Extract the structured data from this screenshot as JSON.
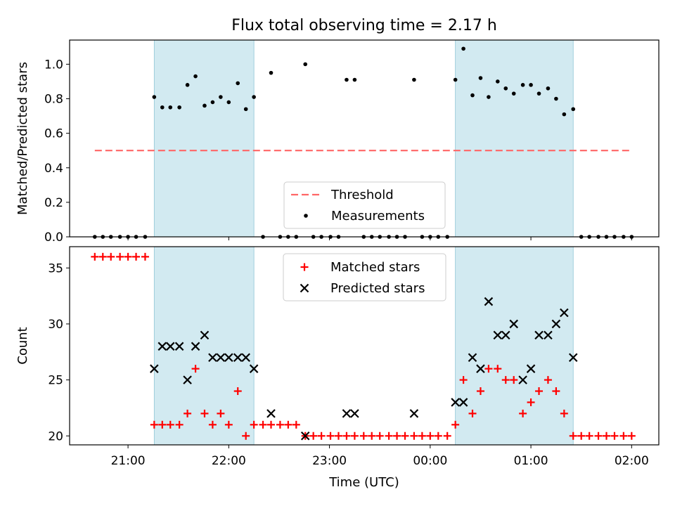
{
  "chart_data": {
    "title": "Flux total observing time = 2.17 h",
    "x_tick_labels": [
      "21:00",
      "22:00",
      "23:00",
      "00:00",
      "01:00",
      "02:00"
    ],
    "x_tick_hours": [
      21,
      22,
      23,
      24,
      25,
      26
    ],
    "xlabel": "Time (UTC)",
    "xlim_hours": [
      20.42,
      26.27
    ],
    "colors": {
      "band": "#add8e6",
      "threshold": "#ff6666",
      "matched": "#ff0000",
      "predicted": "#000000",
      "measurement": "#000000"
    },
    "bands_hours": [
      [
        21.26,
        22.25
      ],
      [
        24.25,
        25.42
      ]
    ],
    "charts": [
      {
        "type": "scatter",
        "ylabel": "Matched/Predicted stars",
        "ylim": [
          0,
          1.14
        ],
        "y_ticks": [
          "0.0",
          "0.2",
          "0.4",
          "0.6",
          "0.8",
          "1.0"
        ],
        "y_tick_values": [
          0.0,
          0.2,
          0.4,
          0.6,
          0.8,
          1.0
        ],
        "threshold": {
          "name": "Threshold",
          "value": 0.5,
          "x_range_hours": [
            20.67,
            25.98
          ]
        },
        "series": [
          {
            "name": "Measurements",
            "points": [
              [
                20.67,
                0
              ],
              [
                20.75,
                0
              ],
              [
                20.83,
                0
              ],
              [
                20.92,
                0
              ],
              [
                21.0,
                0
              ],
              [
                21.08,
                0
              ],
              [
                21.17,
                0
              ],
              [
                21.26,
                0.81
              ],
              [
                21.34,
                0.75
              ],
              [
                21.42,
                0.75
              ],
              [
                21.51,
                0.75
              ],
              [
                21.59,
                0.88
              ],
              [
                21.67,
                0.93
              ],
              [
                21.76,
                0.76
              ],
              [
                21.84,
                0.78
              ],
              [
                21.92,
                0.81
              ],
              [
                22.0,
                0.78
              ],
              [
                22.09,
                0.89
              ],
              [
                22.17,
                0.74
              ],
              [
                22.25,
                0.81
              ],
              [
                22.34,
                0
              ],
              [
                22.42,
                0.95
              ],
              [
                22.51,
                0
              ],
              [
                22.59,
                0
              ],
              [
                22.67,
                0
              ],
              [
                22.76,
                1.0
              ],
              [
                22.84,
                0
              ],
              [
                22.92,
                0
              ],
              [
                23.01,
                0
              ],
              [
                23.09,
                0
              ],
              [
                23.17,
                0.91
              ],
              [
                23.25,
                0.91
              ],
              [
                23.34,
                0
              ],
              [
                23.42,
                0
              ],
              [
                23.5,
                0
              ],
              [
                23.59,
                0
              ],
              [
                23.67,
                0
              ],
              [
                23.75,
                0
              ],
              [
                23.84,
                0.91
              ],
              [
                23.92,
                0
              ],
              [
                24.0,
                0
              ],
              [
                24.08,
                0
              ],
              [
                24.17,
                0
              ],
              [
                24.25,
                0.91
              ],
              [
                24.33,
                1.09
              ],
              [
                24.42,
                0.82
              ],
              [
                24.5,
                0.92
              ],
              [
                24.58,
                0.81
              ],
              [
                24.67,
                0.9
              ],
              [
                24.75,
                0.86
              ],
              [
                24.83,
                0.83
              ],
              [
                24.92,
                0.88
              ],
              [
                25.0,
                0.88
              ],
              [
                25.08,
                0.83
              ],
              [
                25.17,
                0.86
              ],
              [
                25.25,
                0.8
              ],
              [
                25.33,
                0.71
              ],
              [
                25.42,
                0.74
              ],
              [
                25.5,
                0
              ],
              [
                25.58,
                0
              ],
              [
                25.67,
                0
              ],
              [
                25.75,
                0
              ],
              [
                25.83,
                0
              ],
              [
                25.92,
                0
              ],
              [
                26.0,
                0
              ]
            ]
          }
        ],
        "legend": {
          "position": "lower-center",
          "entries": [
            "Threshold",
            "Measurements"
          ]
        }
      },
      {
        "type": "scatter",
        "ylabel": "Count",
        "ylim": [
          19.2,
          36.9
        ],
        "y_ticks": [
          "20",
          "25",
          "30",
          "35"
        ],
        "y_tick_values": [
          20,
          25,
          30,
          35
        ],
        "series": [
          {
            "name": "Matched stars",
            "marker": "+",
            "points": [
              [
                20.67,
                36
              ],
              [
                20.75,
                36
              ],
              [
                20.83,
                36
              ],
              [
                20.92,
                36
              ],
              [
                21.0,
                36
              ],
              [
                21.08,
                36
              ],
              [
                21.17,
                36
              ],
              [
                21.26,
                21
              ],
              [
                21.34,
                21
              ],
              [
                21.42,
                21
              ],
              [
                21.51,
                21
              ],
              [
                21.59,
                22
              ],
              [
                21.67,
                26
              ],
              [
                21.76,
                22
              ],
              [
                21.84,
                21
              ],
              [
                21.92,
                22
              ],
              [
                22.0,
                21
              ],
              [
                22.09,
                24
              ],
              [
                22.17,
                20
              ],
              [
                22.25,
                21
              ],
              [
                22.34,
                21
              ],
              [
                22.42,
                21
              ],
              [
                22.51,
                21
              ],
              [
                22.59,
                21
              ],
              [
                22.67,
                21
              ],
              [
                22.76,
                20
              ],
              [
                22.84,
                20
              ],
              [
                22.92,
                20
              ],
              [
                23.01,
                20
              ],
              [
                23.09,
                20
              ],
              [
                23.17,
                20
              ],
              [
                23.25,
                20
              ],
              [
                23.34,
                20
              ],
              [
                23.42,
                20
              ],
              [
                23.5,
                20
              ],
              [
                23.59,
                20
              ],
              [
                23.67,
                20
              ],
              [
                23.75,
                20
              ],
              [
                23.84,
                20
              ],
              [
                23.92,
                20
              ],
              [
                24.0,
                20
              ],
              [
                24.08,
                20
              ],
              [
                24.17,
                20
              ],
              [
                24.25,
                21
              ],
              [
                24.33,
                25
              ],
              [
                24.42,
                22
              ],
              [
                24.5,
                24
              ],
              [
                24.58,
                26
              ],
              [
                24.67,
                26
              ],
              [
                24.75,
                25
              ],
              [
                24.83,
                25
              ],
              [
                24.92,
                22
              ],
              [
                25.0,
                23
              ],
              [
                25.08,
                24
              ],
              [
                25.17,
                25
              ],
              [
                25.25,
                24
              ],
              [
                25.33,
                22
              ],
              [
                25.42,
                20
              ],
              [
                25.5,
                20
              ],
              [
                25.58,
                20
              ],
              [
                25.67,
                20
              ],
              [
                25.75,
                20
              ],
              [
                25.83,
                20
              ],
              [
                25.92,
                20
              ],
              [
                26.0,
                20
              ]
            ]
          },
          {
            "name": "Predicted stars",
            "marker": "x",
            "points": [
              [
                21.26,
                26
              ],
              [
                21.34,
                28
              ],
              [
                21.42,
                28
              ],
              [
                21.51,
                28
              ],
              [
                21.59,
                25
              ],
              [
                21.67,
                28
              ],
              [
                21.76,
                29
              ],
              [
                21.84,
                27
              ],
              [
                21.92,
                27
              ],
              [
                22.0,
                27
              ],
              [
                22.09,
                27
              ],
              [
                22.17,
                27
              ],
              [
                22.25,
                26
              ],
              [
                22.42,
                22
              ],
              [
                22.76,
                20
              ],
              [
                23.17,
                22
              ],
              [
                23.25,
                22
              ],
              [
                23.84,
                22
              ],
              [
                24.25,
                23
              ],
              [
                24.33,
                23
              ],
              [
                24.42,
                27
              ],
              [
                24.5,
                26
              ],
              [
                24.58,
                32
              ],
              [
                24.67,
                29
              ],
              [
                24.75,
                29
              ],
              [
                24.83,
                30
              ],
              [
                24.92,
                25
              ],
              [
                25.0,
                26
              ],
              [
                25.08,
                29
              ],
              [
                25.17,
                29
              ],
              [
                25.25,
                30
              ],
              [
                25.33,
                31
              ],
              [
                25.42,
                27
              ]
            ]
          }
        ],
        "legend": {
          "position": "upper-center",
          "entries": [
            "Matched stars",
            "Predicted stars"
          ]
        }
      }
    ]
  }
}
